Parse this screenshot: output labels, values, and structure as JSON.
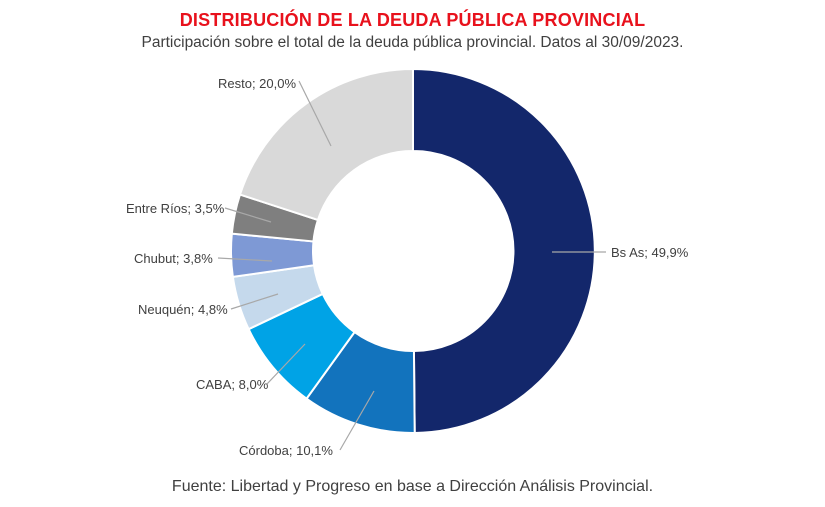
{
  "header": {
    "title": "DISTRIBUCIÓN DE LA DEUDA PÚBLICA PROVINCIAL",
    "subtitle": "Participación sobre el total de la deuda pública provincial. Datos al 30/09/2023."
  },
  "footer": {
    "source": "Fuente: Libertad y Progreso en base a Dirección Análisis Provincial."
  },
  "colors": {
    "title_red": "#e8111c",
    "label_text": "#404040",
    "leader_line": "#a8a8a8",
    "slice_border": "#ffffff",
    "background": "#ffffff"
  },
  "chart_data": {
    "type": "pie",
    "subtype": "donut",
    "title": "DISTRIBUCIÓN DE LA DEUDA PÚBLICA PROVINCIAL",
    "unit": "%",
    "decimal_separator": ",",
    "start_position": "12-o-clock",
    "direction": "clockwise",
    "legend": "none",
    "label_style": "outside-with-leader-lines",
    "slices": [
      {
        "name": "Bs As",
        "value": 49.9,
        "label": "Bs As; 49,9%",
        "color": "#13276B"
      },
      {
        "name": "Córdoba",
        "value": 10.1,
        "label": "Córdoba; 10,1%",
        "color": "#1273BD"
      },
      {
        "name": "CABA",
        "value": 8.0,
        "label": "CABA; 8,0%",
        "color": "#00A3E6"
      },
      {
        "name": "Neuquén",
        "value": 4.8,
        "label": "Neuquén; 4,8%",
        "color": "#C5D9EC"
      },
      {
        "name": "Chubut",
        "value": 3.8,
        "label": "Chubut; 3,8%",
        "color": "#7E99D5"
      },
      {
        "name": "Entre Ríos",
        "value": 3.5,
        "label": "Entre Ríos; 3,5%",
        "color": "#7F7F7F"
      },
      {
        "name": "Resto",
        "value": 20.0,
        "label": "Resto; 20,0%",
        "color": "#D9D9D9"
      }
    ]
  }
}
